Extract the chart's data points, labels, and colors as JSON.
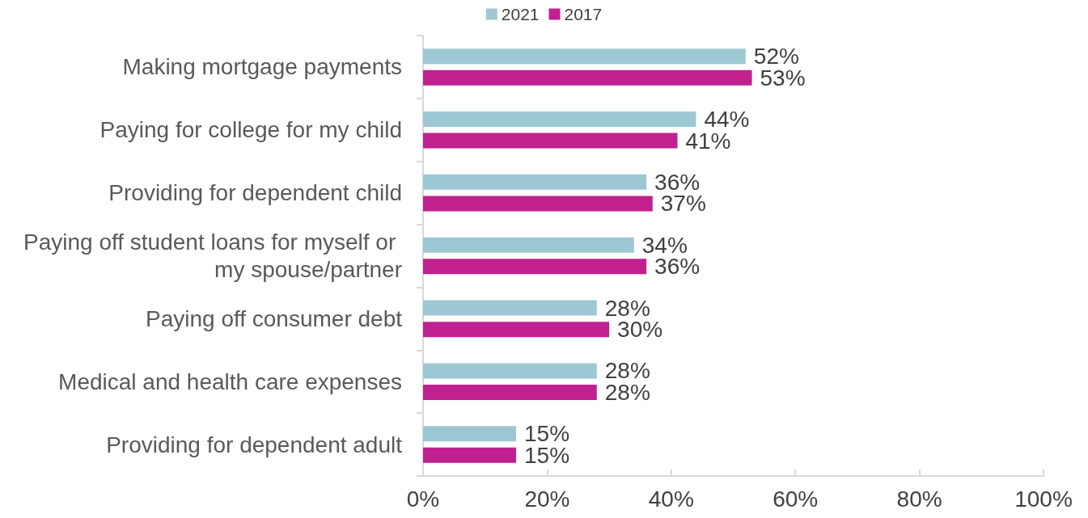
{
  "chart_data": {
    "type": "bar",
    "orientation": "horizontal",
    "categories": [
      "Making mortgage payments",
      "Paying for college for my child",
      "Providing for dependent child",
      "Paying off student loans for myself or my spouse/partner",
      "Paying off consumer debt",
      "Medical and health care expenses",
      "Providing for dependent adult"
    ],
    "series": [
      {
        "name": "2021",
        "color": "#9dc8d3",
        "values": [
          52,
          44,
          36,
          34,
          28,
          28,
          15
        ],
        "value_labels": [
          "52%",
          "44%",
          "36%",
          "34%",
          "28%",
          "28%",
          "15%"
        ]
      },
      {
        "name": "2017",
        "color": "#c0218f",
        "values": [
          53,
          41,
          37,
          36,
          30,
          28,
          15
        ],
        "value_labels": [
          "53%",
          "41%",
          "37%",
          "36%",
          "30%",
          "28%",
          "15%"
        ]
      }
    ],
    "xlim": [
      0,
      100
    ],
    "xticks": [
      {
        "value": 0,
        "label": "0%"
      },
      {
        "value": 20,
        "label": "20%"
      },
      {
        "value": 40,
        "label": "40%"
      },
      {
        "value": 60,
        "label": "60%"
      },
      {
        "value": 80,
        "label": "80%"
      },
      {
        "value": 100,
        "label": "100%"
      }
    ],
    "grid": false,
    "legend": "top"
  }
}
